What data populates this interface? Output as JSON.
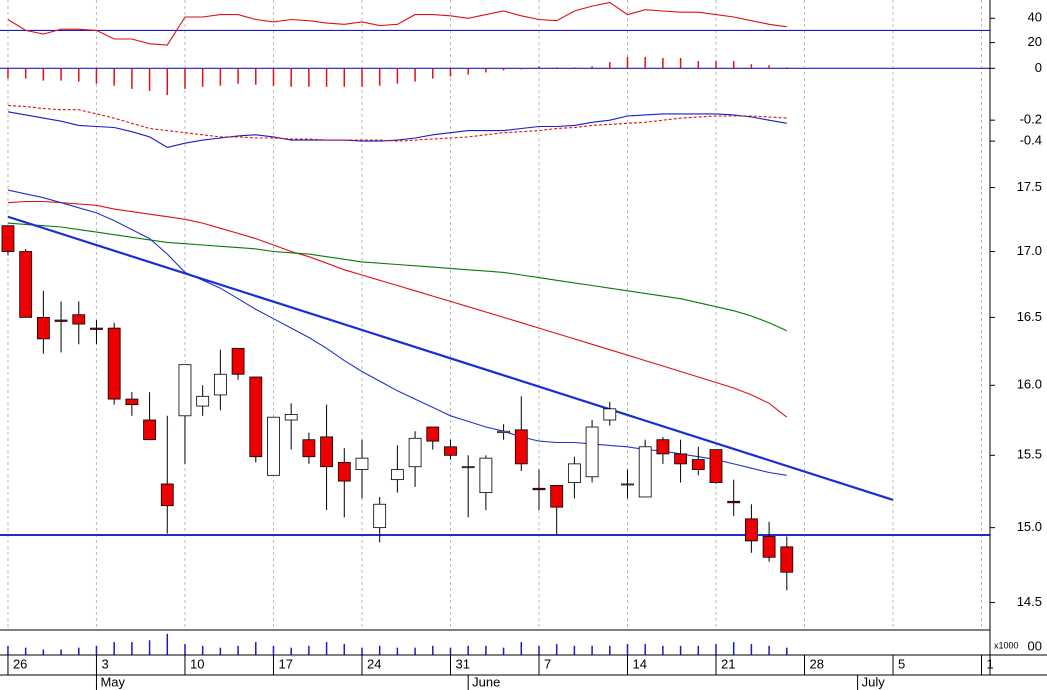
{
  "chart_data": [
    {
      "type": "line",
      "ylim": [
        9,
        55
      ],
      "yticks": [
        40,
        20
      ],
      "hlines": [
        {
          "value": 30,
          "color": "#1a1acc"
        }
      ],
      "series": [
        {
          "color": "#d11",
          "values": [
            39,
            30,
            27,
            31,
            31,
            30,
            23,
            23,
            19,
            18,
            41,
            41,
            43,
            43,
            39,
            37,
            39,
            38,
            36,
            35,
            37,
            34,
            35,
            43,
            43,
            42,
            40,
            43,
            46,
            42,
            39,
            38,
            46,
            50,
            53,
            43,
            47,
            46,
            45,
            45,
            43,
            41,
            38,
            35,
            33
          ]
        }
      ]
    },
    {
      "type": "bar",
      "ylim": [
        -0.13,
        0.06
      ],
      "yticks": [
        0
      ],
      "color": "#d11",
      "hlines": [
        {
          "value": 0,
          "color": "#1a1acc"
        }
      ],
      "values": [
        -0.05,
        -0.05,
        -0.06,
        -0.06,
        -0.065,
        -0.075,
        -0.085,
        -0.1,
        -0.11,
        -0.13,
        -0.1,
        -0.09,
        -0.085,
        -0.075,
        -0.08,
        -0.085,
        -0.09,
        -0.09,
        -0.09,
        -0.09,
        -0.09,
        -0.085,
        -0.075,
        -0.065,
        -0.05,
        -0.04,
        -0.03,
        -0.02,
        -0.01,
        -0.005,
        0.01,
        0.005,
        0.005,
        0.01,
        0.03,
        0.055,
        0.055,
        0.05,
        0.05,
        0.035,
        0.035,
        0.035,
        0.02,
        0.015,
        0.005
      ]
    },
    {
      "type": "line",
      "ylim": [
        -0.58,
        0.04
      ],
      "yticks": [
        -0.2,
        -0.4
      ],
      "series": [
        {
          "color": "#1a1acc",
          "dash": false,
          "values": [
            -0.12,
            -0.15,
            -0.18,
            -0.21,
            -0.25,
            -0.26,
            -0.27,
            -0.31,
            -0.36,
            -0.46,
            -0.42,
            -0.39,
            -0.37,
            -0.35,
            -0.34,
            -0.36,
            -0.39,
            -0.39,
            -0.39,
            -0.39,
            -0.4,
            -0.4,
            -0.39,
            -0.37,
            -0.34,
            -0.32,
            -0.3,
            -0.3,
            -0.3,
            -0.28,
            -0.26,
            -0.26,
            -0.25,
            -0.22,
            -0.2,
            -0.16,
            -0.15,
            -0.14,
            -0.14,
            -0.14,
            -0.14,
            -0.15,
            -0.17,
            -0.2,
            -0.23
          ]
        },
        {
          "color": "#d11",
          "dash": true,
          "values": [
            -0.06,
            -0.07,
            -0.09,
            -0.1,
            -0.1,
            -0.14,
            -0.18,
            -0.23,
            -0.28,
            -0.3,
            -0.32,
            -0.34,
            -0.36,
            -0.36,
            -0.37,
            -0.37,
            -0.38,
            -0.38,
            -0.39,
            -0.39,
            -0.39,
            -0.39,
            -0.4,
            -0.39,
            -0.38,
            -0.37,
            -0.36,
            -0.34,
            -0.32,
            -0.31,
            -0.3,
            -0.28,
            -0.27,
            -0.25,
            -0.24,
            -0.23,
            -0.22,
            -0.2,
            -0.18,
            -0.17,
            -0.16,
            -0.16,
            -0.16,
            -0.17,
            -0.18
          ]
        }
      ]
    },
    {
      "type": "candlestick",
      "log_scale": true,
      "ylim": [
        14.32,
        17.72
      ],
      "yticks": [
        17.5,
        {
          "value": 17,
          "label": "17.0"
        },
        16.5,
        {
          "value": 16,
          "label": "16.0"
        },
        15.5,
        {
          "value": 15,
          "label": "15.0"
        },
        14.5
      ],
      "x": [
        0,
        1,
        2,
        3,
        4,
        5,
        6,
        7,
        8,
        9,
        10,
        11,
        12,
        13,
        14,
        15,
        16,
        17,
        18,
        19,
        20,
        21,
        22,
        23,
        24,
        25,
        26,
        27,
        28,
        29,
        30,
        31,
        32,
        33,
        34,
        35,
        36,
        37,
        38,
        39,
        40,
        41,
        42,
        43,
        44
      ],
      "xlim": [
        -0.45,
        55.48
      ],
      "xticks": [
        {
          "value": 0,
          "label": "26"
        },
        {
          "value": 5,
          "label": "3"
        },
        {
          "value": 10,
          "label": "10"
        },
        {
          "value": 15,
          "label": "17"
        },
        {
          "value": 20,
          "label": "24"
        },
        {
          "value": 25,
          "label": "31"
        },
        {
          "value": 30,
          "label": "7"
        },
        {
          "value": 35,
          "label": "14"
        },
        {
          "value": 40,
          "label": "21"
        },
        {
          "value": 45,
          "label": "28"
        },
        {
          "value": 50,
          "label": "5"
        },
        {
          "value": 55,
          "label": "1"
        }
      ],
      "month_ticks": [
        {
          "value": 5,
          "label": "May"
        },
        {
          "value": 26,
          "label": "June"
        },
        {
          "value": 48,
          "label": "July"
        }
      ],
      "grid": true,
      "up_color": "#ffffff",
      "down_color": "#ee0000",
      "open": [
        17.2,
        17.0,
        16.5,
        16.48,
        16.52,
        16.42,
        16.42,
        15.9,
        15.75,
        15.3,
        15.78,
        15.85,
        15.93,
        16.27,
        16.06,
        15.36,
        15.75,
        15.61,
        15.63,
        15.45,
        15.4,
        15.0,
        15.33,
        15.42,
        15.7,
        15.56,
        15.42,
        15.24,
        15.66,
        15.68,
        15.27,
        15.29,
        15.31,
        15.35,
        15.75,
        15.3,
        15.21,
        15.61,
        15.51,
        15.47,
        15.54,
        15.18,
        15.06,
        14.94,
        14.87
      ],
      "high": [
        17.2,
        17.02,
        16.7,
        16.62,
        16.62,
        16.48,
        16.46,
        15.95,
        15.95,
        15.78,
        16.15,
        16.0,
        16.26,
        16.27,
        16.06,
        15.77,
        15.87,
        15.66,
        15.86,
        15.55,
        15.61,
        15.21,
        15.57,
        15.67,
        15.7,
        15.61,
        15.5,
        15.5,
        15.72,
        15.92,
        15.4,
        15.29,
        15.49,
        15.75,
        15.88,
        15.4,
        15.61,
        15.63,
        15.61,
        15.56,
        15.54,
        15.33,
        15.16,
        15.04,
        14.94
      ],
      "low": [
        16.97,
        16.5,
        16.23,
        16.24,
        16.3,
        16.3,
        15.86,
        15.78,
        15.61,
        14.96,
        15.44,
        15.78,
        15.82,
        16.04,
        15.45,
        15.36,
        15.54,
        15.44,
        15.12,
        15.07,
        15.2,
        14.9,
        15.24,
        15.28,
        15.54,
        15.47,
        15.07,
        15.12,
        15.61,
        15.39,
        15.12,
        14.95,
        15.2,
        15.31,
        15.71,
        15.2,
        15.21,
        15.44,
        15.31,
        15.36,
        15.3,
        15.08,
        14.83,
        14.77,
        14.58
      ],
      "close": [
        17.0,
        16.5,
        16.34,
        16.47,
        16.45,
        16.41,
        15.9,
        15.86,
        15.61,
        15.15,
        16.15,
        15.92,
        16.08,
        16.08,
        15.49,
        15.77,
        15.79,
        15.49,
        15.42,
        15.32,
        15.48,
        15.16,
        15.4,
        15.62,
        15.6,
        15.5,
        15.42,
        15.48,
        15.67,
        15.44,
        15.26,
        15.14,
        15.44,
        15.7,
        15.83,
        15.3,
        15.56,
        15.51,
        15.44,
        15.4,
        15.31,
        15.17,
        14.91,
        14.8,
        14.7
      ],
      "series": [
        {
          "color": "#d11",
          "values": [
            17.38,
            17.39,
            17.39,
            17.38,
            17.37,
            17.36,
            17.33,
            17.31,
            17.29,
            17.27,
            17.25,
            17.22,
            17.18,
            17.14,
            17.1,
            17.05,
            17.0,
            16.96,
            16.91,
            16.86,
            16.82,
            16.78,
            16.74,
            16.7,
            16.66,
            16.62,
            16.58,
            16.54,
            16.5,
            16.46,
            16.42,
            16.38,
            16.34,
            16.3,
            16.26,
            16.22,
            16.18,
            16.14,
            16.1,
            16.06,
            16.02,
            15.98,
            15.93,
            15.87,
            15.77
          ]
        },
        {
          "color": "#0a7a0a",
          "values": [
            17.22,
            17.21,
            17.2,
            17.19,
            17.17,
            17.15,
            17.13,
            17.11,
            17.09,
            17.07,
            17.06,
            17.05,
            17.04,
            17.03,
            17.02,
            17.0,
            16.99,
            16.98,
            16.96,
            16.94,
            16.92,
            16.91,
            16.9,
            16.89,
            16.88,
            16.87,
            16.86,
            16.85,
            16.84,
            16.82,
            16.8,
            16.78,
            16.76,
            16.74,
            16.72,
            16.7,
            16.68,
            16.66,
            16.64,
            16.61,
            16.58,
            16.55,
            16.51,
            16.46,
            16.4
          ]
        },
        {
          "color": "#2233cc",
          "values": [
            17.48,
            17.45,
            17.42,
            17.38,
            17.34,
            17.3,
            17.24,
            17.17,
            17.1,
            16.98,
            16.84,
            16.78,
            16.72,
            16.64,
            16.56,
            16.49,
            16.42,
            16.35,
            16.27,
            16.18,
            16.1,
            16.03,
            15.96,
            15.9,
            15.84,
            15.78,
            15.74,
            15.7,
            15.67,
            15.63,
            15.6,
            15.59,
            15.59,
            15.58,
            15.57,
            15.56,
            15.54,
            15.53,
            15.51,
            15.49,
            15.47,
            15.44,
            15.41,
            15.38,
            15.36
          ]
        }
      ],
      "trendlines": [
        {
          "color": "#1a2fd0",
          "x": [
            0,
            50
          ],
          "y": [
            17.27,
            15.19
          ]
        }
      ],
      "hlines": [
        {
          "value": 14.95,
          "color": "#1a2fd0"
        }
      ]
    },
    {
      "type": "bar",
      "ylim": [
        0,
        25
      ],
      "color": "#1a1acc",
      "unit_label": "x1000",
      "tick_label": "00",
      "values": [
        10,
        8,
        6,
        6,
        8,
        10,
        14,
        14,
        16,
        23,
        12,
        10,
        8,
        10,
        14,
        10,
        8,
        10,
        14,
        12,
        8,
        10,
        8,
        8,
        10,
        8,
        10,
        10,
        8,
        14,
        10,
        12,
        10,
        10,
        10,
        12,
        12,
        10,
        10,
        10,
        12,
        14,
        12,
        10,
        8
      ]
    }
  ]
}
